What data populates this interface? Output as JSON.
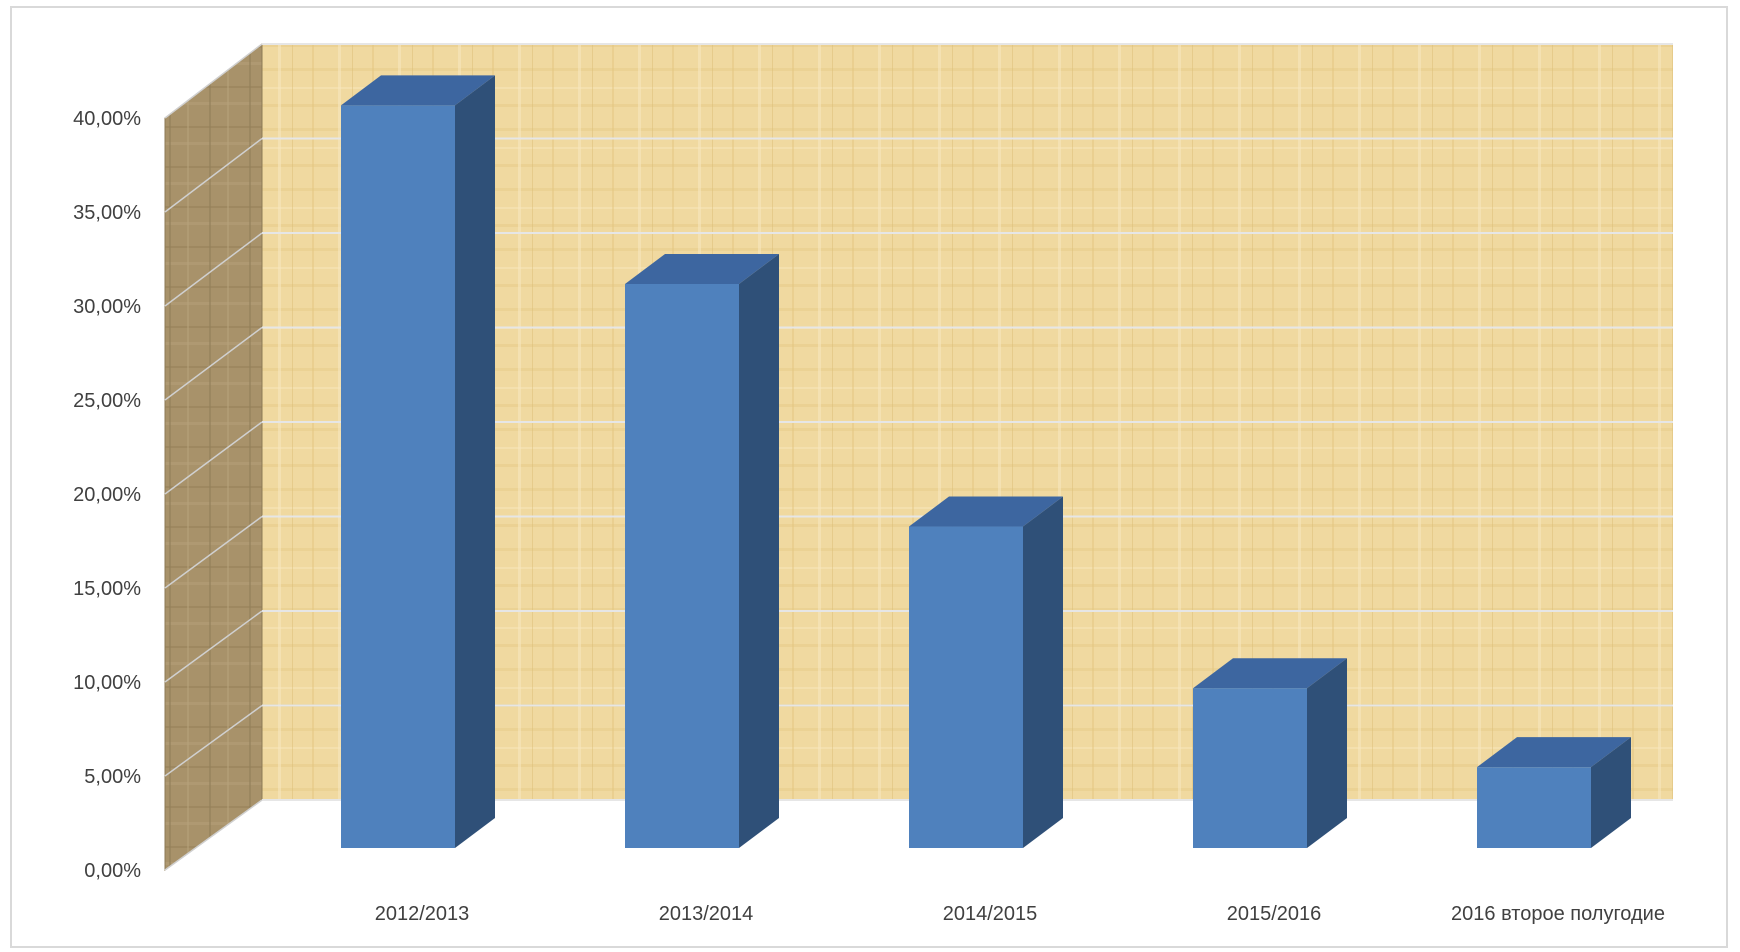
{
  "chart_data": {
    "type": "bar",
    "style": "3d-column",
    "categories": [
      "2012/2013",
      "2013/2014",
      "2014/2015",
      "2015/2016",
      "2016 второе полугодие"
    ],
    "values": [
      0.395,
      0.3,
      0.171,
      0.085,
      0.043
    ],
    "y_ticks": [
      "0,00%",
      "5,00%",
      "10,00%",
      "15,00%",
      "20,00%",
      "25,00%",
      "30,00%",
      "35,00%",
      "40,00%"
    ],
    "ylim": [
      0,
      0.4
    ],
    "y_format": "percent",
    "title": "",
    "xlabel": "",
    "ylabel": "",
    "grid": true,
    "legend": "none",
    "colors": {
      "bar_front": "#4f81bd",
      "bar_top": "#3d66a0",
      "bar_side": "#2f5078",
      "back_wall": "#f0d9a0",
      "side_wall": "#a8926a",
      "gridline": "#e6e6e6"
    }
  }
}
